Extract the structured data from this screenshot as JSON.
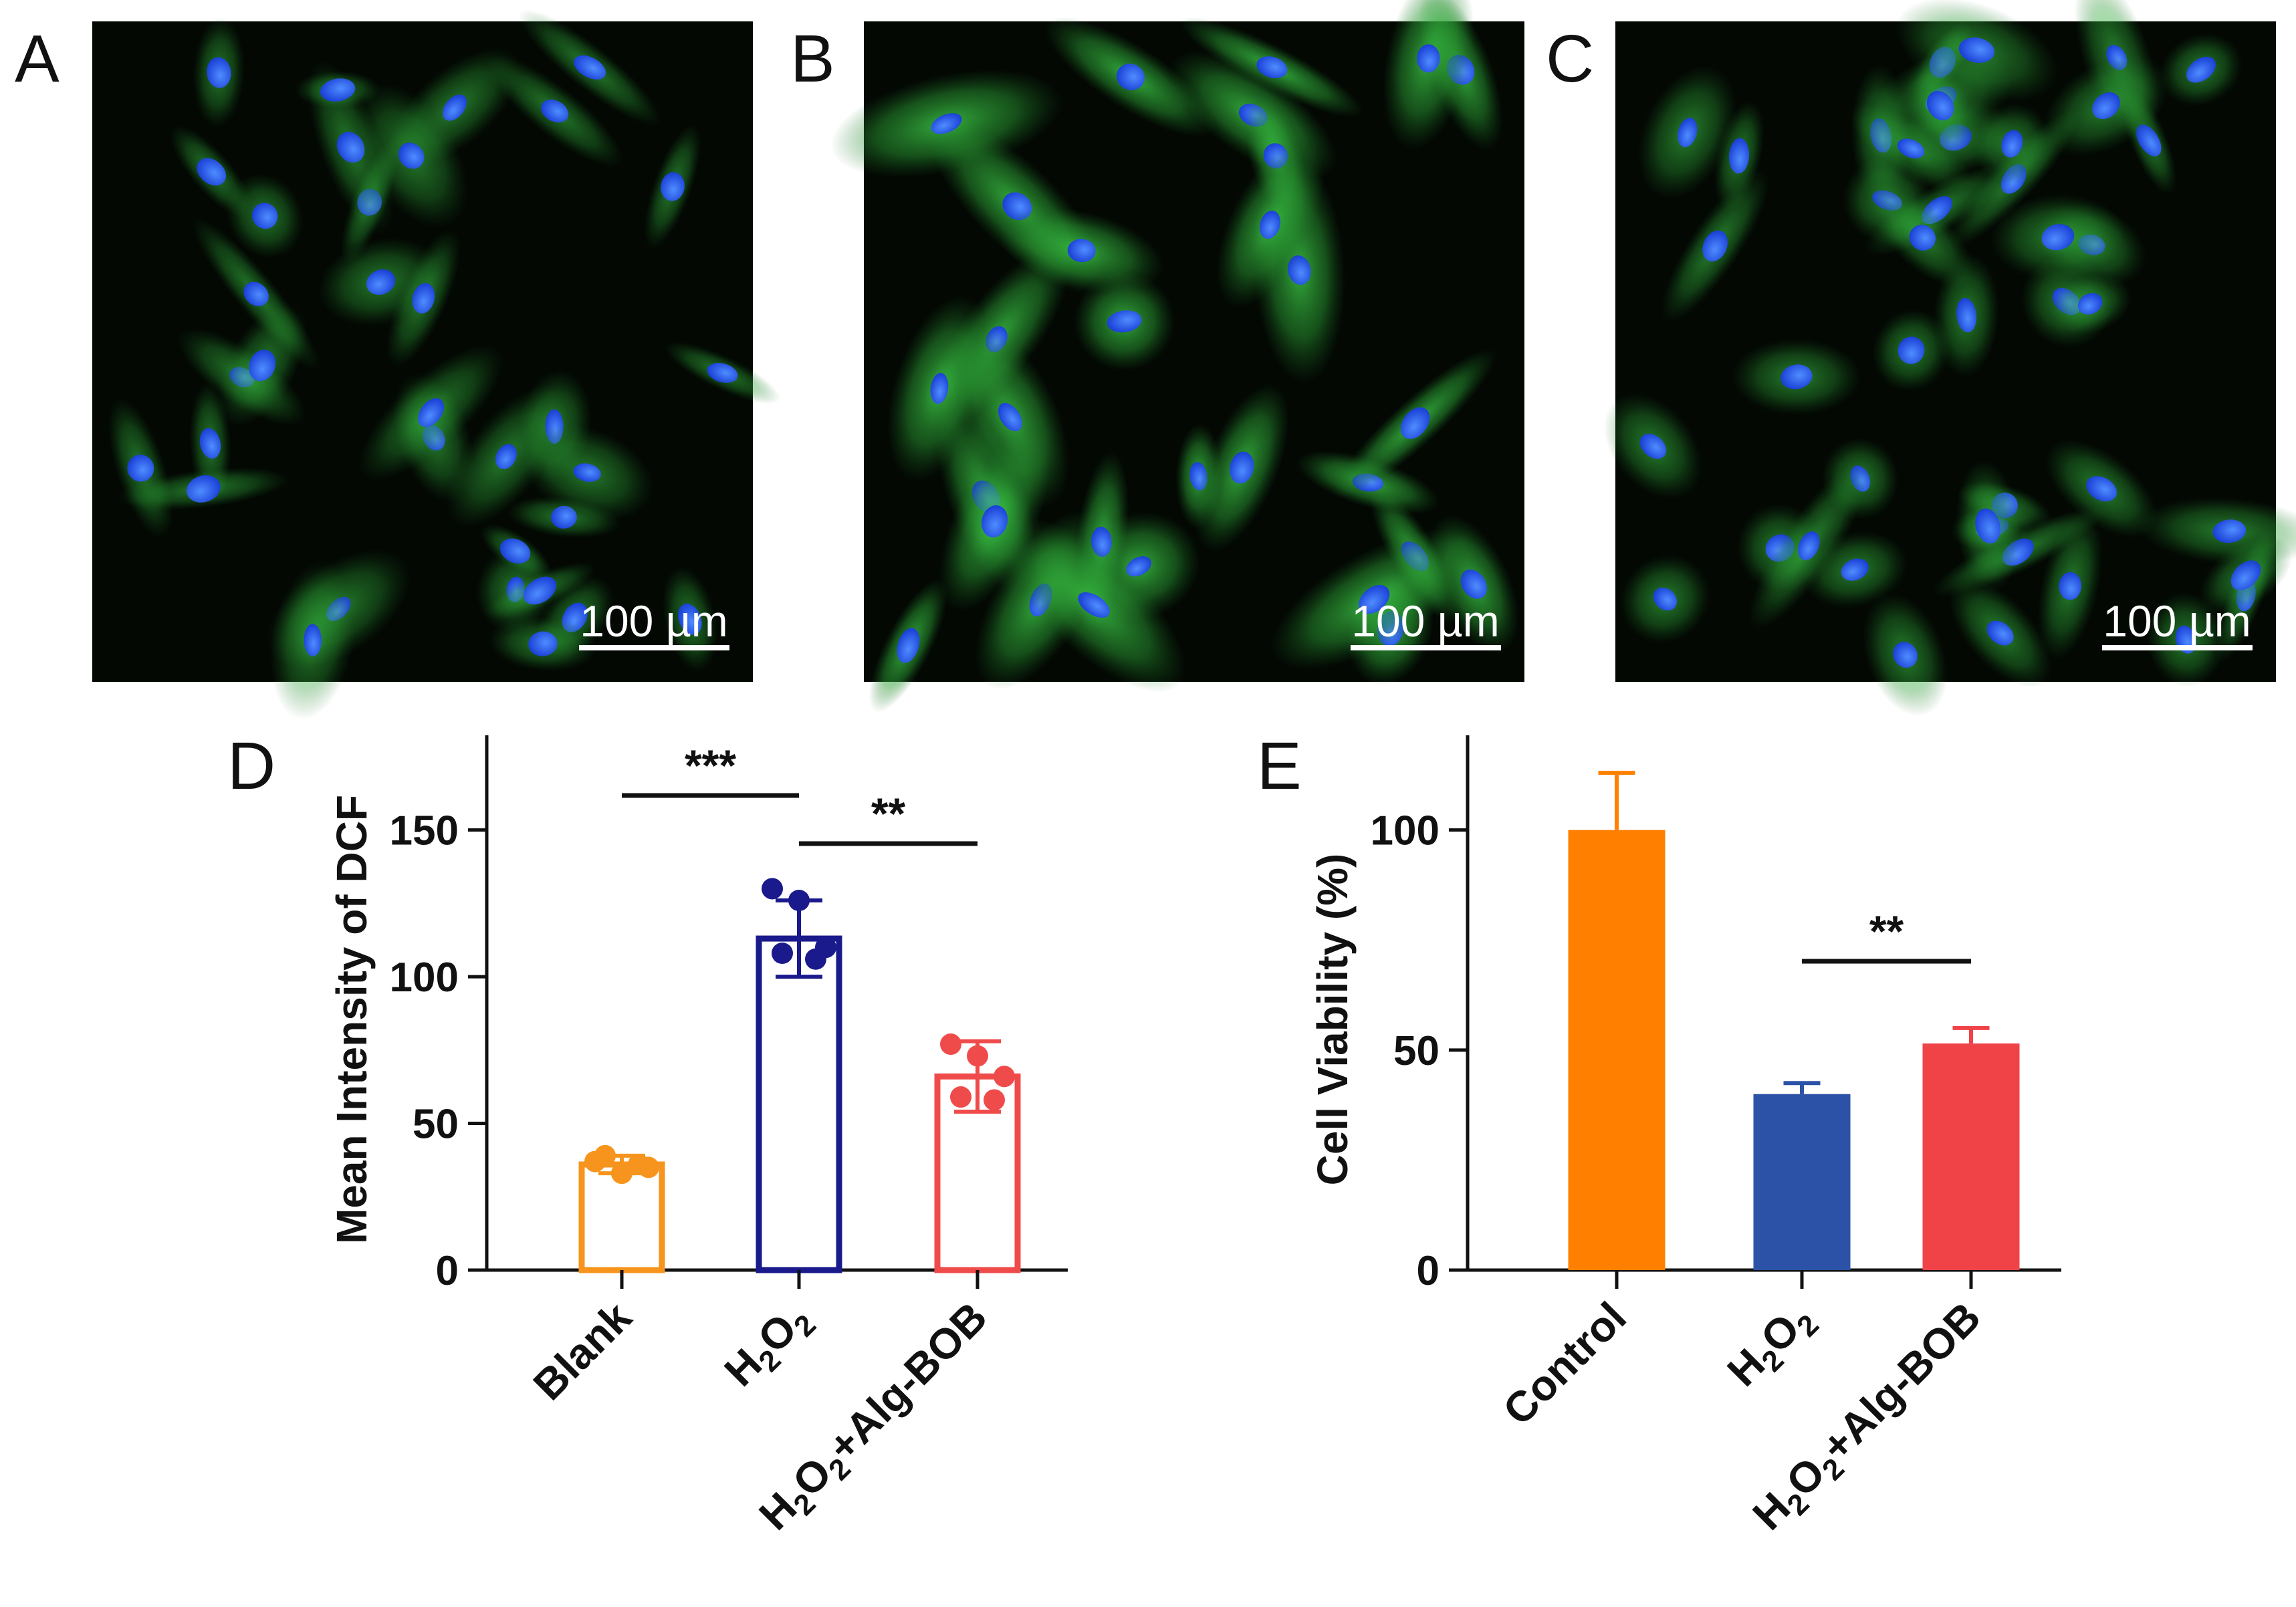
{
  "micrographs": [
    {
      "letter": "A",
      "scale_bar": "100 µm",
      "brightness": 0.55,
      "cells": 34
    },
    {
      "letter": "B",
      "scale_bar": "100 µm",
      "brightness": 1.0,
      "cells": 30
    },
    {
      "letter": "C",
      "scale_bar": "100 µm",
      "brightness": 0.6,
      "cells": 44
    }
  ],
  "image_colors": {
    "nuclei": "#1f5cff",
    "cytoplasm": "#34c23c",
    "background": "#030803"
  },
  "chart_data": [
    {
      "panel": "D",
      "type": "bar",
      "ylabel": "Mean Intensity of DCF",
      "ylim": [
        0,
        180
      ],
      "yticks": [
        0,
        50,
        100,
        150
      ],
      "bar_style": "outline",
      "categories": [
        {
          "label": "Blank",
          "plain": "Blank"
        },
        {
          "label": "H2O2",
          "plain": "H2O2"
        },
        {
          "label": "H2O2+Alg-BOB",
          "plain": "H2O2+Alg-BOB"
        }
      ],
      "values": [
        36,
        113,
        66
      ],
      "errors": [
        3,
        13,
        12
      ],
      "colors": [
        "#f7941d",
        "#1a1a8c",
        "#f04b4b"
      ],
      "points": [
        [
          37,
          33,
          35,
          39,
          36
        ],
        [
          130,
          126,
          110,
          108,
          106
        ],
        [
          77,
          73,
          66,
          59,
          58
        ]
      ],
      "significance": [
        {
          "from": 0,
          "to": 1,
          "text": "***"
        },
        {
          "from": 1,
          "to": 2,
          "text": "**"
        }
      ]
    },
    {
      "panel": "E",
      "type": "bar",
      "ylabel": "Cell Viability (%)",
      "ylim": [
        0,
        120
      ],
      "yticks": [
        0,
        50,
        100
      ],
      "bar_style": "filled",
      "categories": [
        {
          "label": "Control",
          "plain": "Control"
        },
        {
          "label": "H2O2",
          "plain": "H2O2"
        },
        {
          "label": "H2O2+Alg-BOB",
          "plain": "H2O2+Alg-BOB"
        }
      ],
      "values": [
        100,
        40,
        51.5
      ],
      "errors": [
        13,
        2.5,
        3.5
      ],
      "colors": [
        "#ff8000",
        "#2b52a6",
        "#f04347"
      ],
      "significance": [
        {
          "from": 1,
          "to": 2,
          "text": "**"
        }
      ]
    }
  ]
}
